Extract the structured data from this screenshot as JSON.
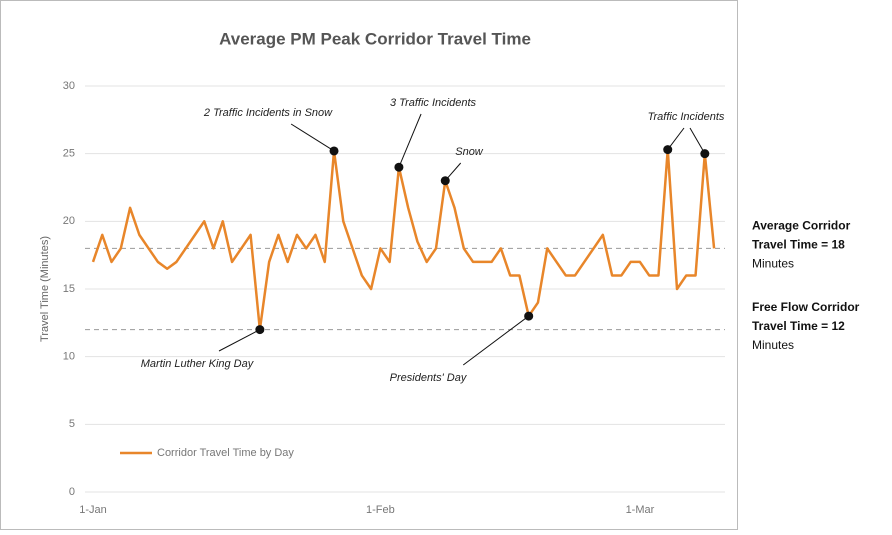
{
  "chart_data": {
    "type": "line",
    "title": "Average PM Peak Corridor Travel Time",
    "y_label": "Travel Time (Minutes)",
    "categories": [
      "1-Jan",
      null,
      null,
      null,
      null,
      null,
      null,
      null,
      null,
      null,
      null,
      null,
      null,
      null,
      null,
      null,
      null,
      null,
      null,
      null,
      null,
      null,
      null,
      null,
      null,
      null,
      null,
      null,
      null,
      null,
      null,
      "1-Feb",
      null,
      null,
      null,
      null,
      null,
      null,
      null,
      null,
      null,
      null,
      null,
      null,
      null,
      null,
      null,
      null,
      null,
      null,
      null,
      null,
      null,
      null,
      null,
      null,
      null,
      null,
      null,
      "1-Mar",
      null,
      null,
      null,
      null,
      null,
      null,
      null,
      null
    ],
    "series": [
      {
        "name": "Corridor Travel Time by Day",
        "color": "#e8862a",
        "values": [
          17,
          19,
          17,
          18,
          21,
          19,
          18,
          17,
          16.5,
          17,
          18,
          19,
          20,
          18,
          20,
          17,
          18,
          19,
          12,
          17,
          19,
          17,
          19,
          18,
          19,
          17,
          25.2,
          20,
          18,
          16,
          15,
          18,
          17,
          24,
          21,
          18.5,
          17,
          18,
          23,
          21,
          18,
          17,
          17,
          17,
          18,
          16,
          16,
          13,
          14,
          18,
          17,
          16,
          16,
          17,
          18,
          19,
          16,
          16,
          17,
          17,
          16,
          16,
          25.3,
          15,
          16,
          16,
          25,
          18
        ]
      }
    ],
    "ylim": [
      0,
      30
    ],
    "yticks": [
      0,
      5,
      10,
      15,
      20,
      25,
      30
    ],
    "grid": true,
    "reference_lines": [
      {
        "value": 18,
        "label": [
          "Average Corridor",
          "Travel Time = 18",
          "Minutes"
        ]
      },
      {
        "value": 12,
        "label": [
          "Free Flow Corridor",
          "Travel Time = 12",
          "Minutes"
        ]
      }
    ],
    "annotations": [
      {
        "text": "2 Traffic Incidents in Snow",
        "points": [
          26
        ]
      },
      {
        "text": "3 Traffic Incidents",
        "points": [
          33
        ]
      },
      {
        "text": "Snow",
        "points": [
          38
        ]
      },
      {
        "text": "Traffic Incidents",
        "points": [
          62,
          66
        ]
      },
      {
        "text": "Martin Luther King Day",
        "points": [
          18
        ]
      },
      {
        "text": "Presidents' Day",
        "points": [
          47
        ]
      }
    ],
    "legend": "lower left"
  }
}
